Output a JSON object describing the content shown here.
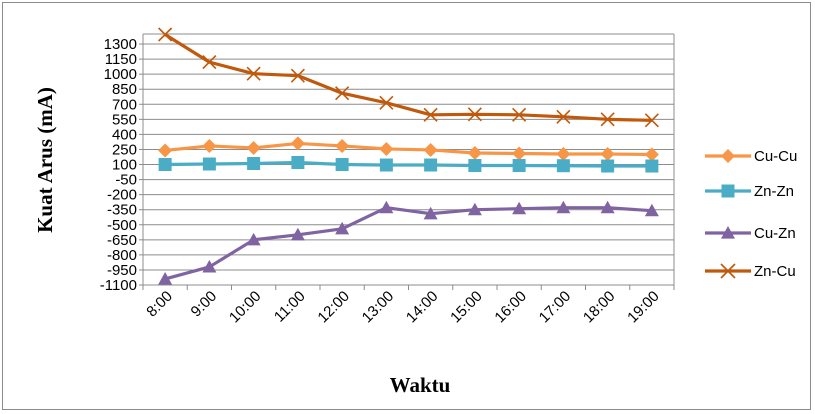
{
  "chart_data": {
    "type": "line",
    "title": "",
    "xlabel": "Waktu",
    "ylabel": "Kuat Arus (mA)",
    "ylim": [
      -1100,
      1400
    ],
    "yticks": [
      "1300",
      "1150",
      "1000",
      "850",
      "700",
      "550",
      "400",
      "250",
      "100",
      "-50",
      "-200",
      "-350",
      "-500",
      "-650",
      "-800",
      "-950",
      "-1100"
    ],
    "categories": [
      "8:00",
      "9:00",
      "10:00",
      "11:00",
      "12:00",
      "13:00",
      "14:00",
      "15:00",
      "16:00",
      "17:00",
      "18:00",
      "19:00"
    ],
    "grid": true,
    "legend_position": "right",
    "series": [
      {
        "name": "Cu-Cu",
        "color": "#f79646",
        "marker": "diamond",
        "values": [
          240,
          285,
          265,
          310,
          285,
          255,
          245,
          215,
          210,
          205,
          205,
          200
        ]
      },
      {
        "name": "Zn-Zn",
        "color": "#4bacc6",
        "marker": "square",
        "values": [
          100,
          105,
          110,
          120,
          100,
          95,
          95,
          90,
          90,
          88,
          85,
          85
        ]
      },
      {
        "name": "Cu-Zn",
        "color": "#8064a2",
        "marker": "triangle",
        "values": [
          -1040,
          -920,
          -650,
          -600,
          -540,
          -330,
          -390,
          -350,
          -340,
          -330,
          -330,
          -360
        ]
      },
      {
        "name": "Zn-Cu",
        "color": "#c0590c",
        "marker": "x",
        "values": [
          1395,
          1120,
          1005,
          985,
          810,
          715,
          595,
          600,
          595,
          575,
          550,
          540
        ]
      }
    ]
  }
}
